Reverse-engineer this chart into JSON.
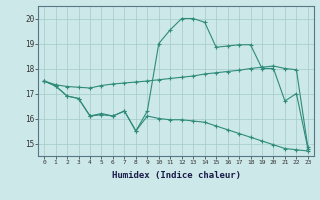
{
  "x": [
    0,
    1,
    2,
    3,
    4,
    5,
    6,
    7,
    8,
    9,
    10,
    11,
    12,
    13,
    14,
    15,
    16,
    17,
    18,
    19,
    20,
    21,
    22,
    23
  ],
  "line_peak": [
    17.5,
    17.3,
    16.9,
    16.8,
    16.1,
    16.2,
    16.1,
    16.3,
    15.5,
    16.3,
    19.0,
    19.55,
    20.0,
    20.0,
    19.85,
    18.85,
    18.9,
    18.95,
    18.95,
    18.0,
    18.0,
    16.7,
    17.0,
    14.8
  ],
  "line_trend": [
    17.5,
    17.35,
    17.28,
    17.25,
    17.22,
    17.32,
    17.38,
    17.42,
    17.46,
    17.5,
    17.55,
    17.6,
    17.65,
    17.7,
    17.78,
    17.83,
    17.88,
    17.93,
    18.0,
    18.05,
    18.1,
    18.0,
    17.95,
    14.85
  ],
  "line_low": [
    17.5,
    17.3,
    16.9,
    16.8,
    16.1,
    16.15,
    16.1,
    16.3,
    15.5,
    16.1,
    16.0,
    15.95,
    15.95,
    15.9,
    15.85,
    15.7,
    15.55,
    15.4,
    15.25,
    15.1,
    14.95,
    14.8,
    14.75,
    14.7
  ],
  "color": "#2e8b7a",
  "bg_color": "#cce8e8",
  "grid_color": "#aacece",
  "xlabel": "Humidex (Indice chaleur)",
  "ylim": [
    14.5,
    20.5
  ],
  "xlim": [
    -0.5,
    23.5
  ],
  "yticks": [
    15,
    16,
    17,
    18,
    19,
    20
  ],
  "xticks": [
    0,
    1,
    2,
    3,
    4,
    5,
    6,
    7,
    8,
    9,
    10,
    11,
    12,
    13,
    14,
    15,
    16,
    17,
    18,
    19,
    20,
    21,
    22,
    23
  ]
}
